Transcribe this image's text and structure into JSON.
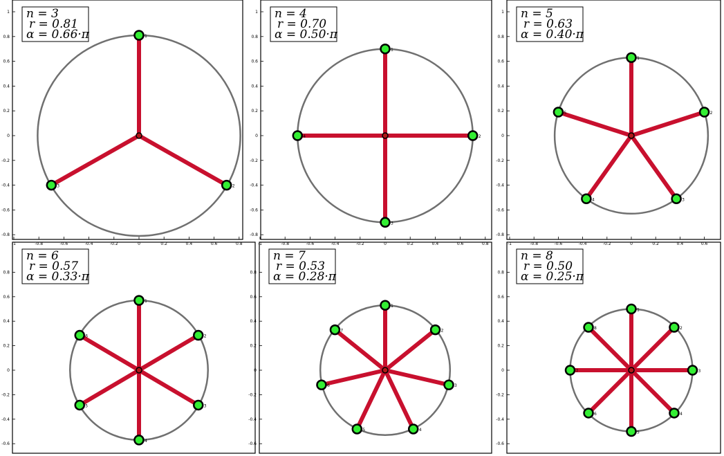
{
  "colors": {
    "spoke": "#c8102e",
    "circle": "#707070",
    "node_fill": "#33ee33",
    "node_stroke": "#000000",
    "center_fill": "#b01818"
  },
  "chart_data": [
    {
      "type": "scatter",
      "n": 3,
      "r": 0.81,
      "alpha": 0.66,
      "info": [
        "n = 3",
        "r = 0.81",
        "α = 0.66·π"
      ],
      "xlim": [
        -1,
        0.82
      ],
      "ylim": [
        -0.85,
        1.05
      ],
      "xticks": [
        -1,
        -0.8,
        -0.6,
        -0.4,
        -0.2,
        0,
        0.2,
        0.4,
        0.6,
        0.8
      ],
      "yticks": [
        -0.8,
        -0.6,
        -0.4,
        -0.2,
        0,
        0.2,
        0.4,
        0.6,
        0.8,
        1
      ],
      "nodes": [
        {
          "label": "1",
          "x": 0,
          "y": 0.81
        },
        {
          "label": "2",
          "x": 0.7,
          "y": -0.4
        },
        {
          "label": "3",
          "x": -0.7,
          "y": -0.4
        }
      ]
    },
    {
      "type": "scatter",
      "n": 4,
      "r": 0.7,
      "alpha": 0.5,
      "info": [
        "n = 4",
        "r = 0.70",
        "α = 0.50·π"
      ],
      "xlim": [
        -1,
        0.82
      ],
      "ylim": [
        -0.85,
        1.05
      ],
      "xticks": [
        -1,
        -0.8,
        -0.6,
        -0.4,
        -0.2,
        0,
        0.2,
        0.4,
        0.6,
        0.8
      ],
      "yticks": [
        -0.8,
        -0.6,
        -0.4,
        -0.2,
        0,
        0.2,
        0.4,
        0.6,
        0.8,
        1
      ],
      "nodes": [
        {
          "label": "1",
          "x": 0,
          "y": 0.7
        },
        {
          "label": "2",
          "x": 0.7,
          "y": 0
        },
        {
          "label": "3",
          "x": 0,
          "y": -0.7
        },
        {
          "label": "4",
          "x": -0.7,
          "y": 0
        }
      ]
    },
    {
      "type": "scatter",
      "n": 5,
      "r": 0.63,
      "alpha": 0.4,
      "info": [
        "n = 5",
        "r = 0.63",
        "α = 0.40·π"
      ],
      "xlim": [
        -1,
        0.76
      ],
      "ylim": [
        -0.85,
        1.05
      ],
      "xticks": [
        -1,
        -0.8,
        -0.6,
        -0.4,
        -0.2,
        0,
        0.2,
        0.4,
        0.6
      ],
      "yticks": [
        -0.8,
        -0.6,
        -0.4,
        -0.2,
        0,
        0.2,
        0.4,
        0.6,
        0.8,
        1
      ],
      "nodes": [
        {
          "label": "1",
          "x": 0,
          "y": 0.63
        },
        {
          "label": "2",
          "x": 0.6,
          "y": 0.19
        },
        {
          "label": "3",
          "x": 0.37,
          "y": -0.51
        },
        {
          "label": "4",
          "x": -0.37,
          "y": -0.51
        },
        {
          "label": "5",
          "x": -0.6,
          "y": 0.19
        }
      ]
    },
    {
      "type": "scatter",
      "n": 6,
      "r": 0.57,
      "alpha": 0.33,
      "info": [
        "n = 6",
        "r = 0.57",
        "α = 0.33·π"
      ],
      "xlim": [
        -1,
        0.82
      ],
      "ylim": [
        -0.68,
        0.99
      ],
      "xticks": [],
      "yticks": [
        -0.6,
        -0.4,
        -0.2,
        0,
        0.2,
        0.4,
        0.6,
        0.8
      ],
      "nodes": [
        {
          "label": "1",
          "x": 0,
          "y": 0.57
        },
        {
          "label": "2",
          "x": 0.49,
          "y": 0.285
        },
        {
          "label": "3",
          "x": 0.49,
          "y": -0.285
        },
        {
          "label": "4",
          "x": 0,
          "y": -0.57
        },
        {
          "label": "5",
          "x": -0.49,
          "y": -0.285
        },
        {
          "label": "6",
          "x": -0.49,
          "y": 0.285
        }
      ]
    },
    {
      "type": "scatter",
      "n": 7,
      "r": 0.53,
      "alpha": 0.28,
      "info": [
        "n = 7",
        "r = 0.53",
        "α = 0.28·π"
      ],
      "xlim": [
        -1,
        0.82
      ],
      "ylim": [
        -0.68,
        0.99
      ],
      "xticks": [],
      "yticks": [
        -0.6,
        -0.4,
        -0.2,
        0,
        0.2,
        0.4,
        0.6,
        0.8
      ],
      "nodes": [
        {
          "label": "1",
          "x": 0,
          "y": 0.53
        },
        {
          "label": "2",
          "x": 0.41,
          "y": 0.33
        },
        {
          "label": "3",
          "x": 0.52,
          "y": -0.12
        },
        {
          "label": "4",
          "x": 0.23,
          "y": -0.48
        },
        {
          "label": "5",
          "x": -0.23,
          "y": -0.48
        },
        {
          "label": "6",
          "x": -0.52,
          "y": -0.12
        },
        {
          "label": "7",
          "x": -0.41,
          "y": 0.33
        }
      ]
    },
    {
      "type": "scatter",
      "n": 8,
      "r": 0.5,
      "alpha": 0.25,
      "info": [
        "n = 8",
        "r = 0.50",
        "α = 0.25·π"
      ],
      "xlim": [
        -1,
        0.76
      ],
      "ylim": [
        -0.68,
        0.99
      ],
      "xticks": [],
      "yticks": [
        -0.6,
        -0.4,
        -0.2,
        0,
        0.2,
        0.4,
        0.6,
        0.8
      ],
      "nodes": [
        {
          "label": "1",
          "x": 0,
          "y": 0.5
        },
        {
          "label": "2",
          "x": 0.35,
          "y": 0.35
        },
        {
          "label": "3",
          "x": 0.5,
          "y": 0
        },
        {
          "label": "4",
          "x": 0.35,
          "y": -0.35
        },
        {
          "label": "5",
          "x": 0,
          "y": -0.5
        },
        {
          "label": "6",
          "x": -0.35,
          "y": -0.35
        },
        {
          "label": "7",
          "x": -0.5,
          "y": 0
        },
        {
          "label": "8",
          "x": -0.35,
          "y": 0.35
        }
      ]
    }
  ]
}
